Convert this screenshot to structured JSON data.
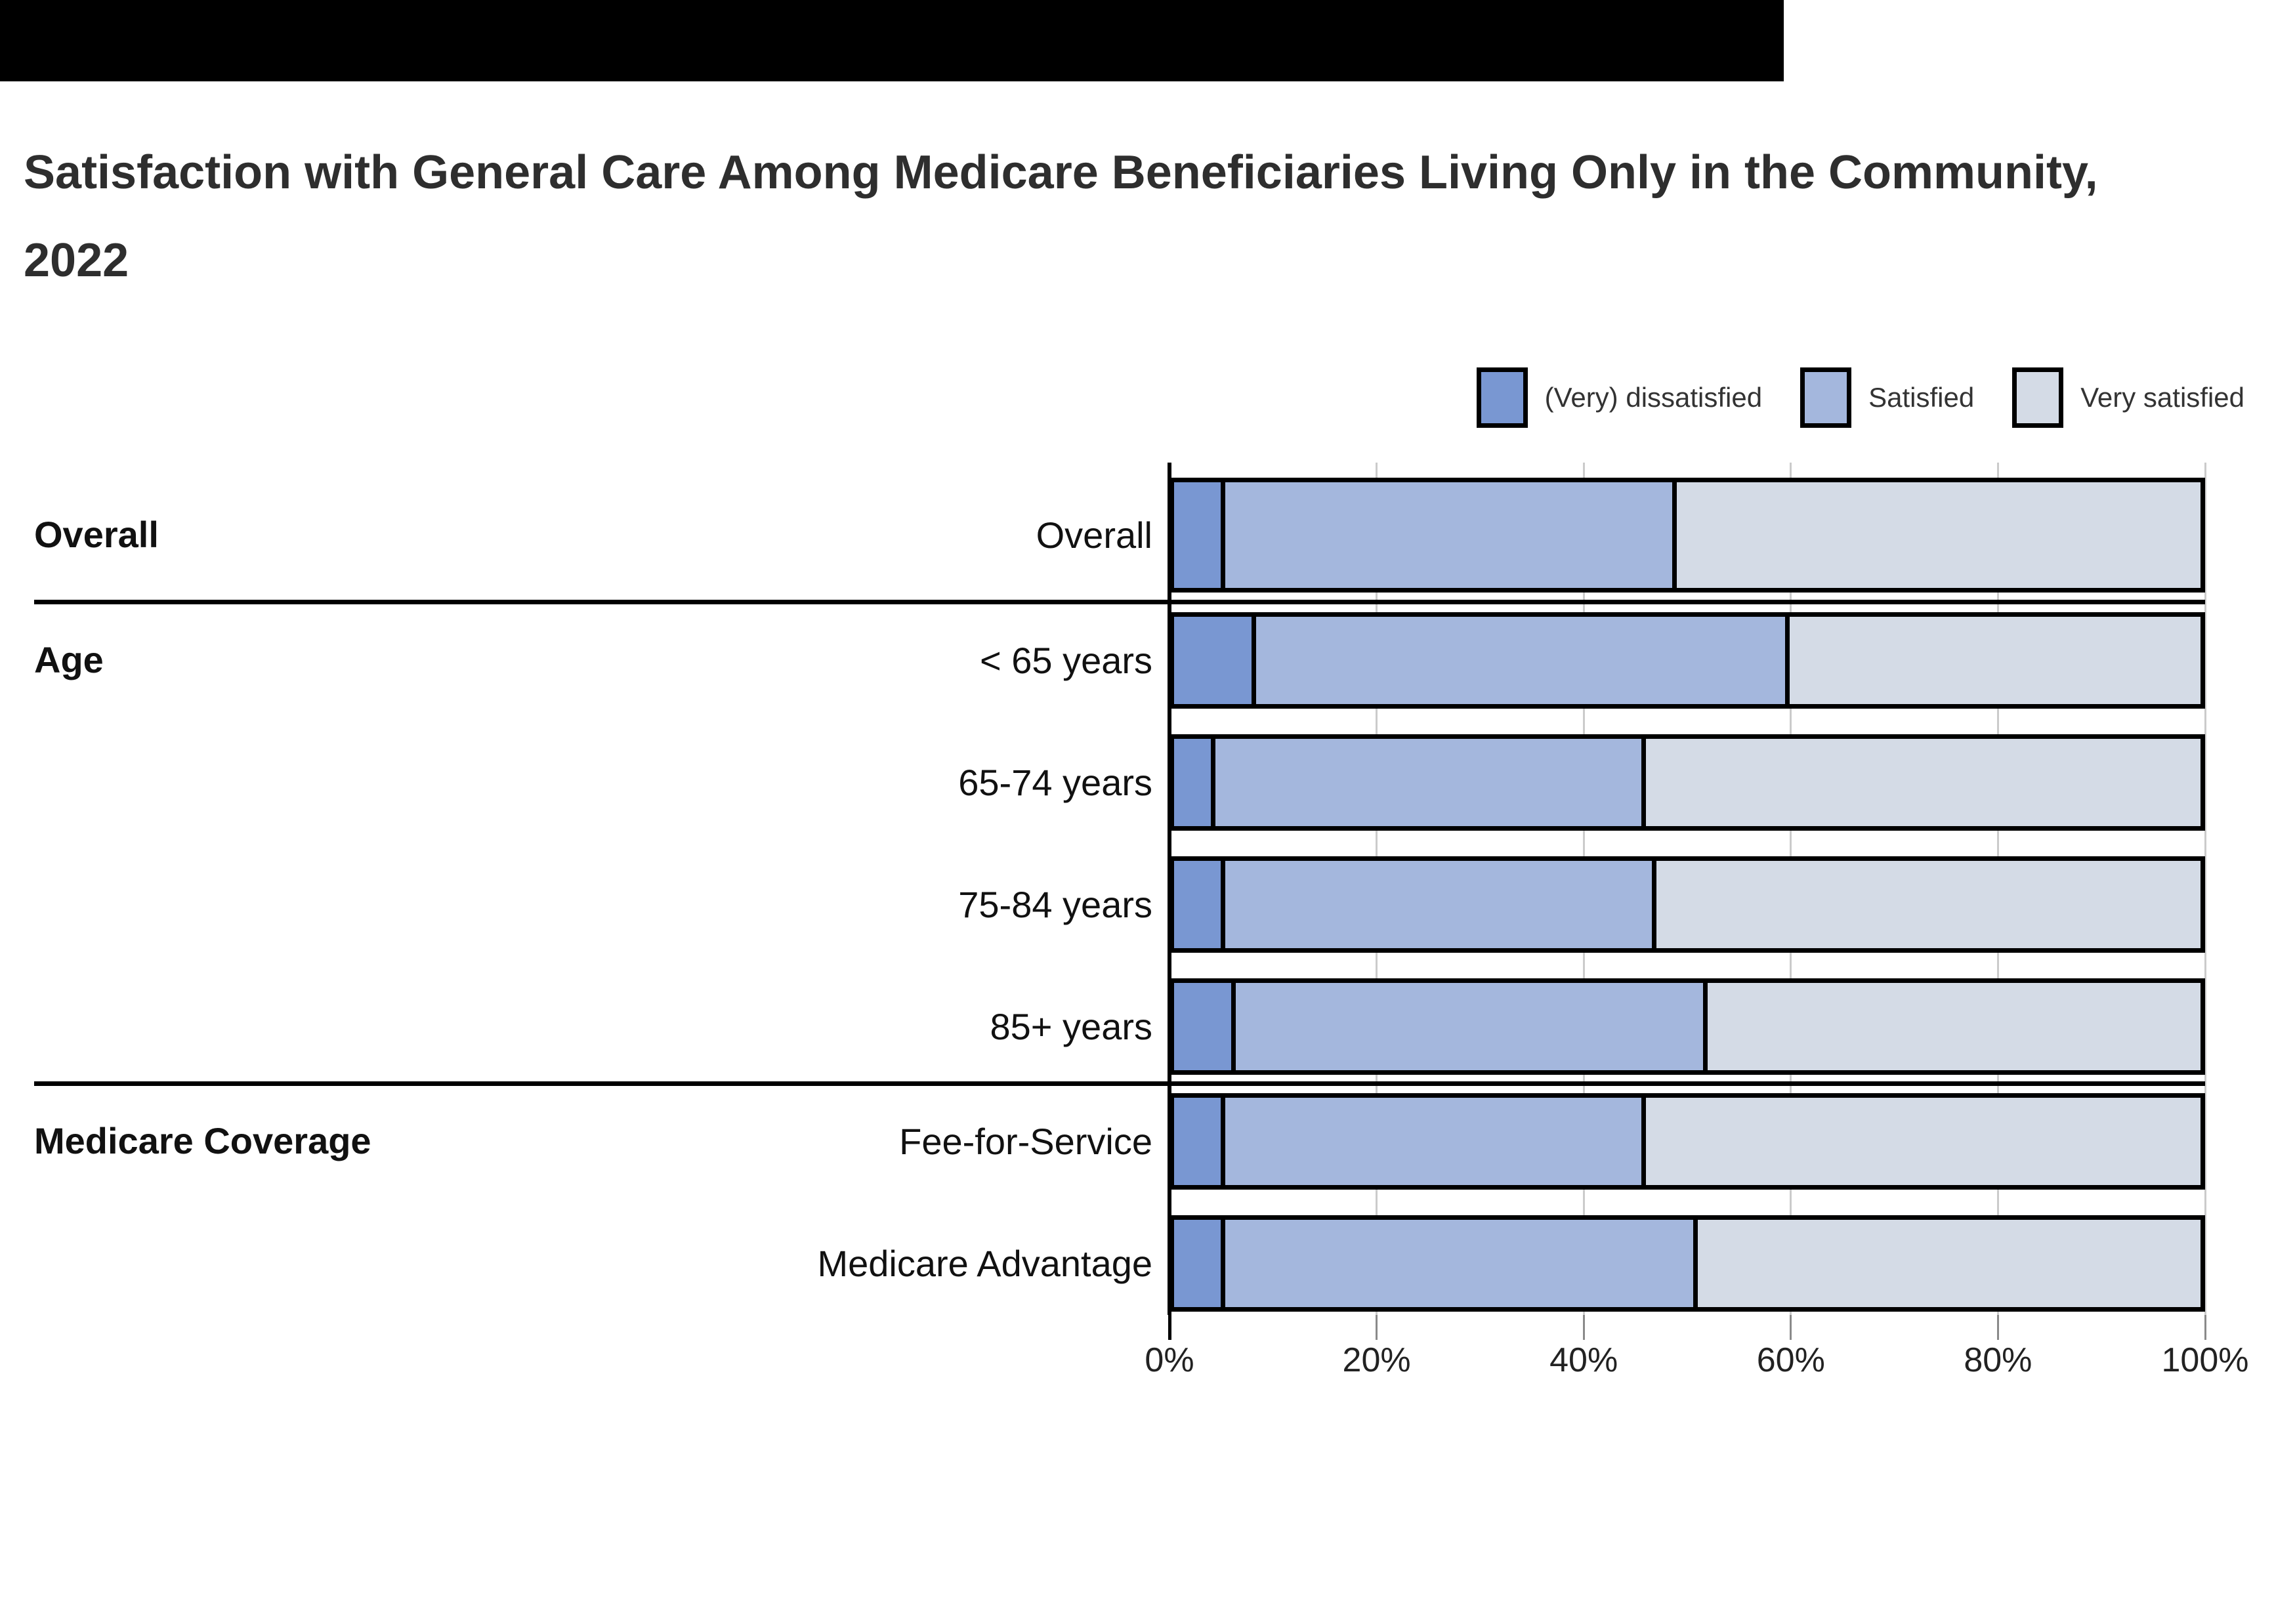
{
  "banner": {
    "color": "#000000"
  },
  "title": {
    "text": "Satisfaction with General Care Among Medicare Beneficiaries Living Only in the Community, 2022"
  },
  "legend": [
    {
      "label": "(Very) dissatisfied",
      "color": "#7997d2"
    },
    {
      "label": "Satisfied",
      "color": "#a4b7dd"
    },
    {
      "label": "Very satisfied",
      "color": "#d4dbe6"
    }
  ],
  "chart_data": {
    "type": "bar",
    "orientation": "horizontal",
    "stacked": true,
    "unit": "percent",
    "title": "Satisfaction with General Care Among Medicare Beneficiaries Living Only in the Community, 2022",
    "xlabel": "",
    "ylabel": "",
    "xlim": [
      0,
      100
    ],
    "x_ticks": [
      "0%",
      "20%",
      "40%",
      "60%",
      "80%",
      "100%"
    ],
    "grid": true,
    "legend_position": "top-right",
    "series_names": [
      "(Very) dissatisfied",
      "Satisfied",
      "Very satisfied"
    ],
    "groups": [
      {
        "group": "Overall",
        "rows": [
          {
            "label": "Overall",
            "values": [
              5,
              44,
              51
            ]
          }
        ]
      },
      {
        "group": "Age",
        "rows": [
          {
            "label": "< 65 years",
            "values": [
              8,
              52,
              40
            ]
          },
          {
            "label": "65-74 years",
            "values": [
              4,
              42,
              54
            ]
          },
          {
            "label": "75-84 years",
            "values": [
              5,
              42,
              53
            ]
          },
          {
            "label": "85+ years",
            "values": [
              6,
              46,
              48
            ]
          }
        ]
      },
      {
        "group": "Medicare Coverage",
        "rows": [
          {
            "label": "Fee-for-Service",
            "values": [
              5,
              41,
              54
            ]
          },
          {
            "label": "Medicare Advantage",
            "values": [
              5,
              46,
              49
            ]
          }
        ]
      }
    ]
  }
}
